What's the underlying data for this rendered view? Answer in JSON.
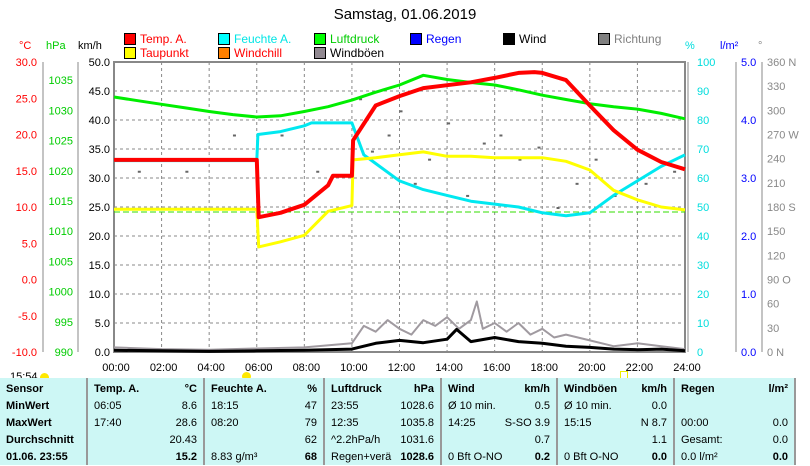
{
  "title": "Samstag, 01.06.2019",
  "units": {
    "c": "°C",
    "hpa": "hPa",
    "kmh": "km/h",
    "pct": "%",
    "lm2": "l/m²",
    "deg": "°"
  },
  "legend": [
    {
      "label": "Temp. A.",
      "color": "#ff0000",
      "text": "#ff0000"
    },
    {
      "label": "Feuchte A.",
      "color": "#00ffff",
      "text": "#00e5e5"
    },
    {
      "label": "Luftdruck",
      "color": "#00ff00",
      "text": "#00cc00"
    },
    {
      "label": "Regen",
      "color": "#0000ff",
      "text": "#0000ff"
    },
    {
      "label": "Wind",
      "color": "#000000",
      "text": "#000000"
    },
    {
      "label": "Richtung",
      "color": "#808080",
      "text": "#808080"
    },
    {
      "label": "Taupunkt",
      "color": "#ffff00",
      "text": "#ff0000"
    },
    {
      "label": "Windchill",
      "color": "#ff8000",
      "text": "#ff0000"
    },
    {
      "label": "Windböen",
      "color": "#908890",
      "text": "#000000"
    }
  ],
  "current_time": "15:54",
  "chart_data": {
    "type": "line",
    "title": "Samstag, 01.06.2019",
    "x_ticks": [
      "00:00",
      "02:00",
      "04:00",
      "06:00",
      "08:00",
      "10:00",
      "12:00",
      "14:00",
      "16:00",
      "18:00",
      "20:00",
      "22:00",
      "24:00"
    ],
    "xlim": [
      0,
      24
    ],
    "axes": {
      "c": {
        "ticks": [
          "30.0",
          "25.0",
          "20.0",
          "15.0",
          "10.0",
          "5.0",
          "0.0",
          "-5.0",
          "-10.0"
        ],
        "range": [
          -10,
          30
        ]
      },
      "hpa": {
        "ticks": [
          "1035",
          "1030",
          "1025",
          "1020",
          "1015",
          "1010",
          "1005",
          "1000",
          "995",
          "990"
        ],
        "range": [
          990,
          1038
        ]
      },
      "kmh": {
        "ticks": [
          "50.0",
          "45.0",
          "40.0",
          "35.0",
          "30.0",
          "25.0",
          "20.0",
          "15.0",
          "10.0",
          "5.0",
          "0.0"
        ],
        "range": [
          0,
          50
        ]
      },
      "pct": {
        "ticks": [
          "100",
          "90",
          "80",
          "70",
          "60",
          "50",
          "40",
          "30",
          "20",
          "10",
          "0"
        ],
        "range": [
          0,
          100
        ]
      },
      "lm2": {
        "ticks": [
          "5.0",
          "4.0",
          "3.0",
          "2.0",
          "1.0",
          "0.0"
        ],
        "range": [
          0,
          5
        ]
      },
      "deg": {
        "ticks": [
          "360 N",
          "330",
          "300",
          "270 W",
          "240",
          "210",
          "180 S",
          "150",
          "120",
          "90  O",
          "60",
          "30",
          "0   N"
        ],
        "range": [
          0,
          360
        ]
      }
    },
    "series": [
      {
        "name": "Luftdruck",
        "axis": "hpa",
        "color": "#00ee00",
        "x": [
          0,
          1,
          2,
          3,
          4,
          5,
          6,
          7,
          8,
          9,
          10,
          11,
          12,
          13,
          14,
          15,
          16,
          17,
          18,
          19,
          20,
          21,
          22,
          23,
          24
        ],
        "y": [
          1032.2,
          1031.6,
          1031,
          1030.4,
          1029.8,
          1029.3,
          1028.9,
          1029.1,
          1029.8,
          1030.6,
          1031.7,
          1033,
          1034.2,
          1035.8,
          1035.1,
          1034.6,
          1034.2,
          1033.4,
          1032.5,
          1031.8,
          1031.1,
          1030.6,
          1030.2,
          1029.5,
          1028.6
        ]
      },
      {
        "name": "Feuchte A.",
        "axis": "pct",
        "color": "#00e8f0",
        "x": [
          0,
          6,
          6.05,
          7,
          8,
          8.3,
          10,
          10.5,
          11,
          12,
          13,
          14,
          15,
          16,
          17,
          18,
          19,
          20,
          21,
          22,
          23,
          24
        ],
        "y": [
          66,
          66,
          75,
          76,
          78,
          79,
          79,
          68,
          65,
          59,
          56,
          54,
          52,
          51,
          50,
          48,
          47,
          48,
          54,
          59,
          64,
          68
        ]
      },
      {
        "name": "Taupunkt",
        "axis": "c",
        "color": "#ffff00",
        "x": [
          0,
          6,
          6.08,
          7,
          8,
          9,
          10,
          10.05,
          11,
          12,
          13,
          14,
          15,
          16,
          17,
          18,
          19,
          20,
          21,
          22,
          23,
          24
        ],
        "y": [
          9.7,
          9.7,
          4.5,
          5.2,
          6.1,
          9.4,
          10.2,
          16.5,
          16.8,
          17.2,
          17.6,
          17.0,
          17.0,
          16.8,
          16.8,
          16.8,
          16.3,
          15.1,
          12.3,
          11.0,
          10.0,
          9.6
        ]
      },
      {
        "name": "Temp. A.",
        "axis": "c",
        "color": "#ff0000",
        "x": [
          0,
          6,
          6.08,
          7,
          8,
          9,
          9.2,
          10,
          10.05,
          11,
          12,
          13,
          14,
          15,
          16,
          17,
          17.67,
          18,
          19,
          20,
          21,
          22,
          23,
          24
        ],
        "y": [
          16.5,
          16.5,
          8.6,
          9.2,
          10.3,
          13,
          14.3,
          14.3,
          19.2,
          24,
          25.3,
          26.4,
          26.8,
          27.2,
          27.8,
          28.5,
          28.6,
          28.5,
          27.5,
          24,
          20.6,
          17.9,
          16.2,
          15.2
        ]
      }
    ],
    "wind": {
      "name": "Wind",
      "axis": "kmh",
      "color": "#000000",
      "x": [
        0,
        2,
        4,
        6,
        8,
        10,
        11,
        12,
        13,
        14,
        14.4,
        15,
        16,
        17,
        18,
        19,
        20,
        21,
        22,
        23,
        24
      ],
      "y": [
        0.3,
        0.2,
        0.1,
        0.2,
        0.3,
        0.5,
        1.5,
        2,
        1.6,
        2.2,
        3.9,
        1.8,
        2.5,
        1.8,
        1.5,
        1,
        0.8,
        0.5,
        0.4,
        0.5,
        0.2
      ]
    },
    "gusts": {
      "name": "Windböen",
      "axis": "kmh",
      "color": "#a09aa0",
      "x": [
        0,
        2,
        4,
        6,
        8,
        10,
        10.5,
        11,
        11.5,
        12,
        12.5,
        13,
        13.5,
        14,
        14.5,
        15,
        15.25,
        15.5,
        16,
        16.5,
        17,
        17.5,
        18,
        18.5,
        19,
        20,
        21,
        22,
        23,
        24
      ],
      "y": [
        0.8,
        0.5,
        0.4,
        0.6,
        0.8,
        1.5,
        4.5,
        3.5,
        5.5,
        4,
        3,
        5.5,
        4.5,
        6,
        4,
        5.5,
        8.7,
        4,
        5,
        3.5,
        5,
        3,
        4,
        2.5,
        3,
        2,
        1,
        1.5,
        1,
        0.5
      ]
    },
    "direction_dots": {
      "axis": "deg",
      "x": [
        1,
        3,
        5,
        7,
        8.5,
        10.3,
        10.8,
        11.5,
        12,
        12.6,
        13.2,
        14,
        14.8,
        15.5,
        16.2,
        17,
        17.8,
        18.6,
        19.4,
        20.2,
        21,
        22.3,
        23.5
      ],
      "y": [
        225,
        225,
        270,
        270,
        225,
        315,
        250,
        270,
        300,
        210,
        240,
        285,
        195,
        260,
        270,
        240,
        255,
        180,
        210,
        240,
        195,
        210,
        225
      ]
    }
  },
  "table": [
    {
      "head": [
        "Sensor",
        ""
      ],
      "rows": [
        [
          "MinWert",
          ""
        ],
        [
          "MaxWert",
          ""
        ],
        [
          "Durchschnitt",
          ""
        ],
        [
          "01.06. 23:55",
          ""
        ]
      ]
    },
    {
      "head": [
        "Temp. A.",
        "°C"
      ],
      "rows": [
        [
          "06:05",
          "8.6"
        ],
        [
          "17:40",
          "28.6"
        ],
        [
          "",
          "20.43"
        ],
        [
          "",
          "15.2"
        ]
      ]
    },
    {
      "head": [
        "Feuchte A.",
        "%"
      ],
      "rows": [
        [
          "18:15",
          "47"
        ],
        [
          "08:20",
          "79"
        ],
        [
          "",
          "62"
        ],
        [
          "8.83 g/m³",
          "68"
        ]
      ]
    },
    {
      "head": [
        "Luftdruck",
        "hPa"
      ],
      "rows": [
        [
          "23:55",
          "1028.6"
        ],
        [
          "12:35",
          "1035.8"
        ],
        [
          "^2.2hPa/h",
          "1031.6"
        ],
        [
          "Regen+verä",
          "1028.6"
        ]
      ]
    },
    {
      "head": [
        "Wind",
        "km/h"
      ],
      "rows": [
        [
          "Ø 10 min.",
          "0.5"
        ],
        [
          "14:25",
          "S-SO 3.9"
        ],
        [
          "",
          "0.7"
        ],
        [
          "0 Bft O-NO",
          "0.2"
        ]
      ]
    },
    {
      "head": [
        "Windböen",
        "km/h"
      ],
      "rows": [
        [
          "Ø 10 min.",
          "0.0"
        ],
        [
          "15:15",
          "N 8.7"
        ],
        [
          "",
          "1.1"
        ],
        [
          "0 Bft O-NO",
          "0.0"
        ]
      ]
    },
    {
      "head": [
        "Regen",
        "l/m²"
      ],
      "rows": [
        [
          "",
          ""
        ],
        [
          "00:00",
          "0.0"
        ],
        [
          "Gesamt:",
          "0.0"
        ],
        [
          "0.0 l/m²",
          "0.0"
        ]
      ]
    }
  ]
}
